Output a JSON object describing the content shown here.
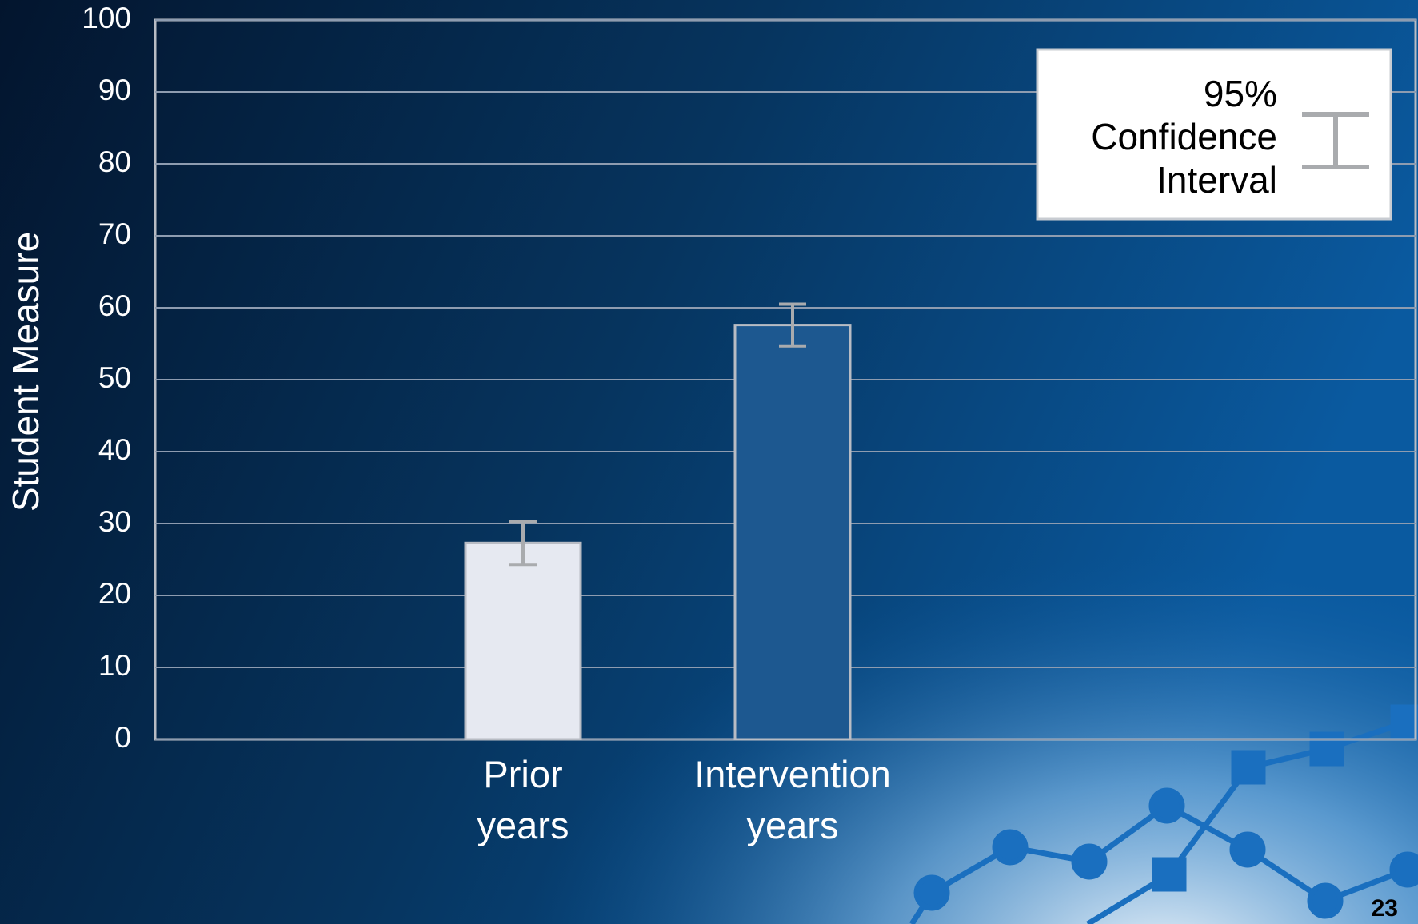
{
  "chart_data": {
    "type": "bar",
    "y_label": "Student Measure",
    "categories": [
      "Prior years",
      "Intervention years"
    ],
    "values": [
      27.3,
      57.6
    ],
    "errors": [
      3,
      2.9
    ],
    "colors": [
      "#e6e9f1",
      "#1d5890"
    ],
    "error_color": "#a9abae",
    "ylim": [
      0,
      100
    ],
    "yticks": [
      0,
      10,
      20,
      30,
      40,
      50,
      60,
      70,
      80,
      90,
      100
    ],
    "grid": true,
    "legend_label": "95% Confidence Interval",
    "legend_position": "top-right"
  },
  "page_number": "23"
}
